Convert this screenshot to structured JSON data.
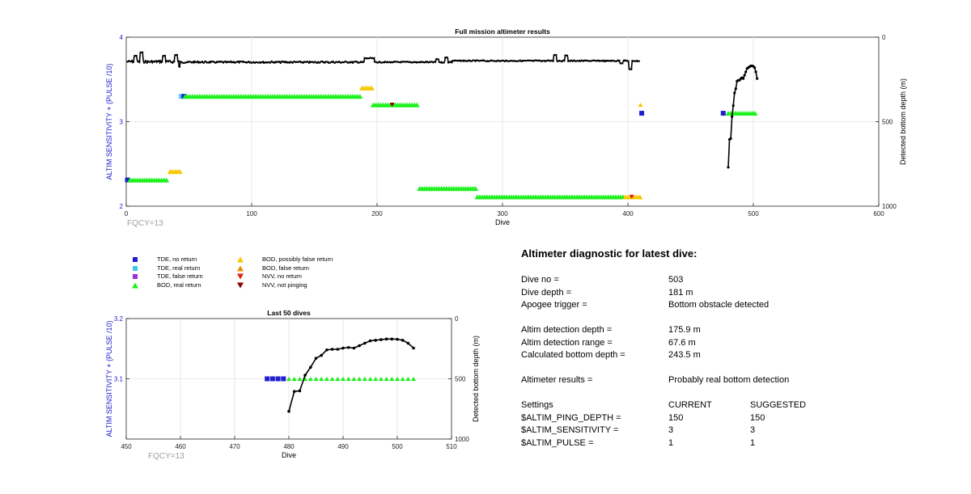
{
  "colors": {
    "axis_blue": "#1a1acd",
    "tde_no_return": "#1f1fd0",
    "tde_real_return": "#3fc8f0",
    "tde_false_return": "#9b30d0",
    "bod_real_return": "#1ef01e",
    "bod_possibly_false": "#f5c800",
    "bod_false_return": "#f08c00",
    "nvv_no_return": "#e02010",
    "nvv_not_pinging": "#8b0000",
    "depth_line": "#000000",
    "fqcy_text": "#a0a0a0"
  },
  "chart_data": [
    {
      "type": "scatter",
      "title": "Full mission altimeter results",
      "xlabel": "Dive",
      "ylabel": "ALTIM SENSITIVITY + (PULSE /10)",
      "y2label": "Detected bottom depth (m)",
      "xlim": [
        0,
        600
      ],
      "ylim": [
        2,
        4
      ],
      "y2lim": [
        1000,
        0
      ],
      "xticks": [
        "0",
        "100",
        "200",
        "300",
        "400",
        "500",
        "600"
      ],
      "yticks": [
        "2",
        "3",
        "4"
      ],
      "y2ticks": [
        "1000",
        "500",
        "0"
      ],
      "grid": true,
      "annotation": "FQCY=13",
      "markers": [
        {
          "kind": "tde_no_return",
          "x": [
            1
          ],
          "y": 2.31
        },
        {
          "kind": "bod_real_return",
          "x_range": [
            3,
            33
          ],
          "y": 2.31
        },
        {
          "kind": "bod_possibly_false",
          "x_range": [
            35,
            43
          ],
          "y": 2.41
        },
        {
          "kind": "tde_real_return",
          "x": [
            44
          ],
          "y": 3.3
        },
        {
          "kind": "tde_no_return",
          "x": [
            46
          ],
          "y": 3.3
        },
        {
          "kind": "bod_real_return",
          "x_range": [
            47,
            188
          ],
          "y": 3.3
        },
        {
          "kind": "bod_possibly_false",
          "x_range": [
            188,
            197
          ],
          "y": 3.4
        },
        {
          "kind": "bod_real_return",
          "x_range": [
            197,
            232
          ],
          "y": 3.2
        },
        {
          "kind": "nvv_not_pinging",
          "x": [
            212
          ],
          "y": 3.2
        },
        {
          "kind": "bod_real_return",
          "x_range": [
            234,
            280
          ],
          "y": 2.21
        },
        {
          "kind": "bod_real_return",
          "x_range": [
            280,
            398
          ],
          "y": 2.11
        },
        {
          "kind": "bod_possibly_false",
          "x_range": [
            398,
            410
          ],
          "y": 2.11
        },
        {
          "kind": "nvv_no_return",
          "x": [
            403
          ],
          "y": 2.11
        },
        {
          "kind": "bod_possibly_false",
          "x": [
            410
          ],
          "y": 3.2
        },
        {
          "kind": "tde_no_return",
          "x": [
            411
          ],
          "y": 3.1
        },
        {
          "kind": "tde_no_return",
          "x": [
            476
          ],
          "y": 3.1
        },
        {
          "kind": "bod_real_return",
          "x_range": [
            480,
            503
          ],
          "y": 3.1
        }
      ],
      "depth_series": {
        "name": "Detected bottom depth",
        "segments": [
          {
            "x_range": [
              1,
              42
            ],
            "base": 145,
            "noise": 14,
            "spikes": [
              [
                7,
                110
              ],
              [
                12,
                90
              ],
              [
                30,
                110
              ],
              [
                40,
                105
              ]
            ]
          },
          {
            "x_range": [
              42,
              190
            ],
            "base": 148,
            "noise": 10,
            "spikes": [
              [
                42,
                175
              ]
            ]
          },
          {
            "x_range": [
              190,
              198
            ],
            "base": 125,
            "noise": 6,
            "spikes": []
          },
          {
            "x_range": [
              198,
              260
            ],
            "base": 148,
            "noise": 7,
            "spikes": [
              [
                248,
                130
              ],
              [
                255,
                120
              ]
            ]
          },
          {
            "x_range": [
              260,
              410
            ],
            "base": 140,
            "noise": 7,
            "spikes": [
              [
                342,
                105
              ],
              [
                351,
                108
              ],
              [
                395,
                155
              ],
              [
                402,
                190
              ]
            ]
          }
        ]
      },
      "depth_tail": {
        "x": [
          480,
          481,
          482,
          483,
          484,
          485,
          486,
          487,
          488,
          489,
          490,
          491,
          492,
          493,
          494,
          495,
          496,
          497,
          498,
          499,
          500,
          501,
          502,
          503
        ],
        "depth": [
          770,
          605,
          600,
          470,
          405,
          330,
          305,
          260,
          255,
          255,
          245,
          240,
          245,
          225,
          205,
          185,
          180,
          175,
          170,
          170,
          172,
          180,
          205,
          245
        ]
      }
    },
    {
      "type": "scatter",
      "title": "Last 50 dives",
      "xlabel": "Dive",
      "ylabel": "ALTIM SENSITIVITY + (PULSE /10)",
      "y2label": "Detected bottom depth (m)",
      "xlim": [
        450,
        510
      ],
      "ylim": [
        3.0,
        3.2
      ],
      "y2lim": [
        1000,
        0
      ],
      "xticks": [
        "450",
        "460",
        "470",
        "480",
        "490",
        "500",
        "510"
      ],
      "yticks": [
        "3.1",
        "3.2"
      ],
      "y2ticks": [
        "1000",
        "500",
        "0"
      ],
      "grid": true,
      "annotation": "FQCY=13",
      "markers": [
        {
          "kind": "tde_no_return",
          "x": [
            476,
            477,
            478,
            479
          ],
          "y": 3.1
        },
        {
          "kind": "bod_real_return",
          "x": [
            480,
            481,
            482,
            483,
            484,
            485,
            486,
            487,
            488,
            489,
            490,
            491,
            492,
            493,
            494,
            495,
            496,
            497,
            498,
            499,
            500,
            501,
            502,
            503
          ],
          "y": 3.1
        }
      ],
      "depth_line": {
        "x": [
          480,
          481,
          482,
          483,
          484,
          485,
          486,
          487,
          488,
          489,
          490,
          491,
          492,
          493,
          494,
          495,
          496,
          497,
          498,
          499,
          500,
          501,
          502,
          503
        ],
        "depth": [
          770,
          605,
          600,
          470,
          405,
          330,
          305,
          260,
          255,
          255,
          245,
          240,
          245,
          225,
          205,
          185,
          180,
          175,
          170,
          170,
          172,
          180,
          205,
          245
        ]
      }
    }
  ],
  "legend": {
    "items": [
      {
        "kind": "tde_no_return",
        "label": "TDE, no return",
        "shape": "square"
      },
      {
        "kind": "tde_real_return",
        "label": "TDE, real return",
        "shape": "square"
      },
      {
        "kind": "tde_false_return",
        "label": "TDE, false return",
        "shape": "square"
      },
      {
        "kind": "bod_real_return",
        "label": "BOD, real return",
        "shape": "triangle-up"
      },
      {
        "kind": "bod_possibly_false",
        "label": "BOD, possibly false return",
        "shape": "triangle-up"
      },
      {
        "kind": "bod_false_return",
        "label": "BOD, false return",
        "shape": "triangle-up"
      },
      {
        "kind": "nvv_no_return",
        "label": "NVV, no return",
        "shape": "triangle-down"
      },
      {
        "kind": "nvv_not_pinging",
        "label": "NVV, not pinging",
        "shape": "triangle-down"
      }
    ]
  },
  "diagnostic": {
    "title": "Altimeter diagnostic for latest dive:",
    "dive_no_label": "Dive no =",
    "dive_no": "503",
    "dive_depth_label": "Dive depth =",
    "dive_depth": "181 m",
    "apogee_label": "Apogee trigger =",
    "apogee": "Bottom obstacle detected",
    "altim_depth_label": "Altim detection depth =",
    "altim_depth": "175.9 m",
    "altim_range_label": "Altim detection range =",
    "altim_range": "67.6 m",
    "calc_depth_label": "Calculated bottom depth =",
    "calc_depth": "243.5 m",
    "results_label": "Altimeter results =",
    "results": "Probably real bottom detection",
    "settings_label": "Settings",
    "current_label": "CURRENT",
    "suggested_label": "SUGGESTED",
    "ping_depth_label": "$ALTIM_PING_DEPTH =",
    "ping_depth_current": "150",
    "ping_depth_suggested": "150",
    "sensitivity_label": "$ALTIM_SENSITIVITY =",
    "sensitivity_current": "3",
    "sensitivity_suggested": "3",
    "pulse_label": "$ALTIM_PULSE =",
    "pulse_current": "1",
    "pulse_suggested": "1"
  }
}
